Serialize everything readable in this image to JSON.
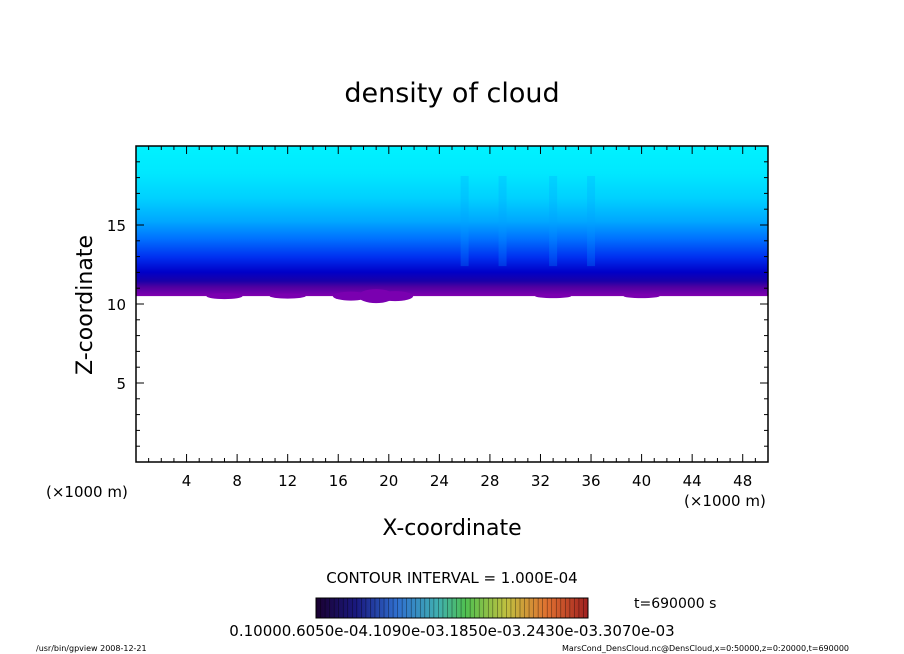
{
  "chart_data": {
    "type": "heatmap",
    "title": "density of cloud",
    "xlabel": "X-coordinate",
    "ylabel": "Z-coordinate",
    "x_unit": "(×1000 m)",
    "y_unit": "(×1000 m)",
    "xlim": [
      0,
      50
    ],
    "ylim": [
      0,
      20
    ],
    "x_ticks": [
      "4",
      "8",
      "12",
      "16",
      "20",
      "24",
      "28",
      "32",
      "36",
      "40",
      "44",
      "48"
    ],
    "y_ticks": [
      "5",
      "10",
      "15"
    ],
    "contour_interval_text": "CONTOUR INTERVAL = 1.000E-04",
    "time_text": "t=690000 s",
    "colorbar_labels": [
      "0.1000",
      "0.6050e-04",
      "0.1090e-03",
      "0.1850e-03",
      "0.2430e-03",
      "0.3070e-03"
    ],
    "colorbar_label_text": "0.10000.6050e-04.1090e-03.1850e-03.2430e-03.3070e-03",
    "cloud_base_km": 10.5,
    "cloud_top_km": 20,
    "color_scale": [
      "#00ffff",
      "#00e0ff",
      "#00c0ff",
      "#0090ff",
      "#0050ff",
      "#0000ff",
      "#0000c0",
      "#2000a0",
      "#6000a0",
      "#8000b0"
    ]
  },
  "footer": {
    "left": "/usr/bin/gpview   2008-12-21",
    "right": "MarsCond_DensCloud.nc@DensCloud,x=0:50000,z=0:20000,t=690000"
  }
}
